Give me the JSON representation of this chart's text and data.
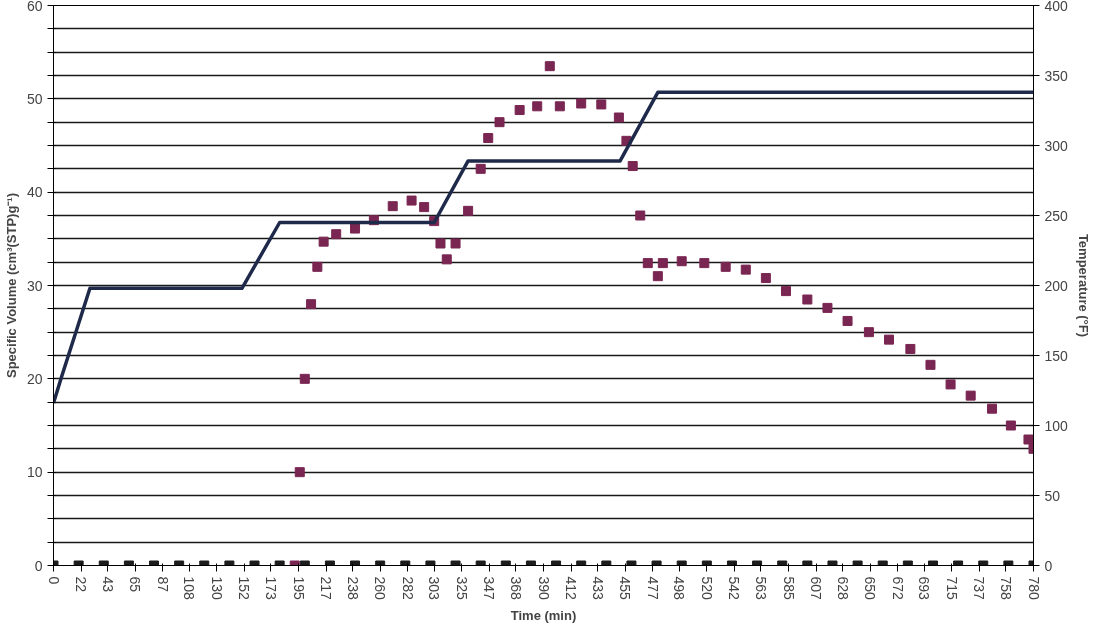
{
  "chart_data": {
    "type": "line",
    "xlabel": "Time (min)",
    "ylabel": "Specific Volume (cm³(STP)g⁻¹)",
    "y2label": "Temperature (°F)",
    "xlim": [
      0,
      780
    ],
    "xticks": [
      0,
      22,
      43,
      65,
      87,
      108,
      130,
      152,
      173,
      195,
      217,
      238,
      260,
      282,
      303,
      325,
      347,
      368,
      390,
      412,
      433,
      455,
      477,
      498,
      520,
      542,
      563,
      585,
      607,
      628,
      650,
      672,
      693,
      715,
      737,
      758,
      780
    ],
    "ylim": [
      0,
      60
    ],
    "yticks": [
      0,
      {
        "value": 2.5,
        "label": null
      },
      {
        "value": 5,
        "label": null
      },
      {
        "value": 7.5,
        "label": null
      },
      10,
      {
        "value": 12.5,
        "label": null
      },
      {
        "value": 15,
        "label": null
      },
      {
        "value": 17.5,
        "label": null
      },
      20,
      {
        "value": 22.5,
        "label": null
      },
      {
        "value": 25,
        "label": null
      },
      {
        "value": 27.5,
        "label": null
      },
      30,
      {
        "value": 32.5,
        "label": null
      },
      {
        "value": 35,
        "label": null
      },
      {
        "value": 37.5,
        "label": null
      },
      40,
      {
        "value": 42.5,
        "label": null
      },
      {
        "value": 45,
        "label": null
      },
      {
        "value": 47.5,
        "label": null
      },
      50,
      {
        "value": 52.5,
        "label": null
      },
      {
        "value": 55,
        "label": null
      },
      {
        "value": 57.5,
        "label": null
      },
      60
    ],
    "y2lim": [
      0,
      400
    ],
    "y2ticks": [
      0,
      50,
      100,
      150,
      200,
      250,
      300,
      350,
      400
    ],
    "grid": "y",
    "line_style": "solid",
    "series": [
      {
        "type": "scatter",
        "marker": "square",
        "color": "#1c1c1c",
        "x": [
          0,
          20,
          40,
          60,
          80,
          100,
          120,
          140,
          160,
          180,
          200,
          220,
          240,
          260,
          280,
          300,
          320,
          340,
          360,
          380,
          400,
          420,
          440,
          460,
          480,
          500,
          520,
          540,
          560,
          580,
          600,
          620,
          640,
          660,
          680,
          700,
          720,
          740,
          760,
          780
        ],
        "values": [
          0,
          0,
          0,
          0,
          0,
          0,
          0,
          0,
          0,
          0,
          0,
          0,
          0,
          0,
          0,
          0,
          0,
          0,
          0,
          0,
          0,
          0,
          0,
          0,
          0,
          0,
          0,
          0,
          0,
          0,
          0,
          0,
          0,
          0,
          0,
          0,
          0,
          0,
          0,
          0
        ]
      },
      {
        "type": "scatter",
        "marker": "square",
        "color": "#7a2652",
        "x": [
          192,
          196,
          200,
          205,
          210,
          215,
          225,
          240,
          255,
          270,
          285,
          295,
          303,
          308,
          313,
          320,
          330,
          340,
          346,
          355,
          371,
          385,
          395,
          403,
          420,
          436,
          450,
          456,
          461,
          467,
          473,
          481,
          485,
          500,
          518,
          535,
          551,
          567,
          583,
          600,
          616,
          632,
          649,
          665,
          682,
          698,
          714,
          730,
          747,
          762,
          776,
          780
        ],
        "values": [
          0,
          10,
          20,
          28,
          32,
          34.7,
          35.5,
          36.1,
          37,
          38.5,
          39.1,
          38.4,
          36.9,
          34.5,
          32.8,
          34.5,
          38,
          42.5,
          45.8,
          47.5,
          48.8,
          49.2,
          53.5,
          49.2,
          49.5,
          49.4,
          48,
          45.5,
          42.8,
          37.5,
          32.4,
          31,
          32.4,
          32.6,
          32.4,
          32,
          31.7,
          30.8,
          29.4,
          28.5,
          27.6,
          26.2,
          25,
          24.2,
          23.2,
          21.5,
          19.4,
          18.2,
          16.8,
          15,
          13.5,
          12.5
        ]
      },
      {
        "axis": "y2",
        "marker": "none",
        "color": "#1f2a4a",
        "x": [
          0,
          6.5,
          29,
          150,
          180,
          303,
          330,
          451,
          481,
          780
        ],
        "values": [
          116,
          135,
          198,
          198,
          245,
          245,
          289,
          289,
          338,
          338
        ]
      }
    ]
  }
}
